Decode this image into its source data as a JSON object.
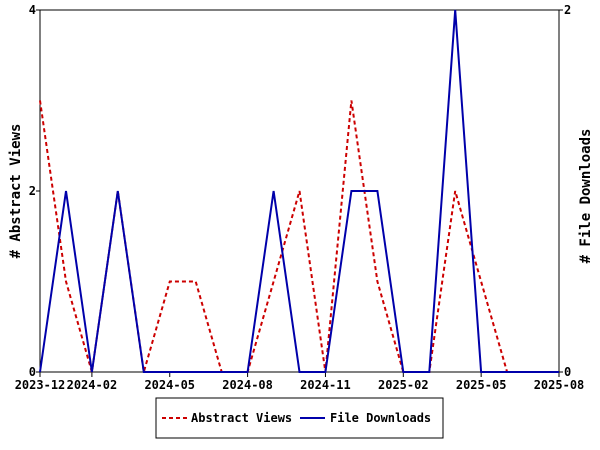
{
  "chart_data": {
    "type": "line",
    "title": "",
    "x_ticks": [
      "2023-12",
      "2024-02",
      "2024-05",
      "2024-08",
      "2024-11",
      "2025-02",
      "2025-05",
      "2025-08"
    ],
    "x": [
      "2023-12",
      "2024-01",
      "2024-02",
      "2024-03",
      "2024-04",
      "2024-05",
      "2024-06",
      "2024-07",
      "2024-08",
      "2024-09",
      "2024-10",
      "2024-11",
      "2024-12",
      "2025-01",
      "2025-02",
      "2025-03",
      "2025-04",
      "2025-05",
      "2025-06",
      "2025-07",
      "2025-08"
    ],
    "ylabel_left": "# Abstract Views",
    "ylabel_right": "# File Downloads",
    "ylim_left": [
      0,
      4
    ],
    "ylim_right": [
      0,
      2
    ],
    "yticks_left": [
      "0",
      "2",
      "4"
    ],
    "yticks_right": [
      "0",
      "2"
    ],
    "grid": false,
    "legend_position": "bottom",
    "series": [
      {
        "name": "Abstract Views",
        "axis": "left",
        "color": "#cc0000",
        "style": "dashed",
        "values": [
          3,
          1,
          0,
          2,
          0,
          1,
          1,
          0,
          0,
          1,
          2,
          0,
          3,
          1,
          0,
          0,
          2,
          1,
          0,
          0,
          0
        ]
      },
      {
        "name": "File Downloads",
        "axis": "right",
        "color": "#0000aa",
        "style": "solid",
        "values": [
          0,
          1,
          0,
          1,
          0,
          0,
          0,
          0,
          0,
          1,
          0,
          0,
          1,
          1,
          0,
          0,
          2,
          0,
          0,
          0,
          0
        ]
      }
    ]
  }
}
